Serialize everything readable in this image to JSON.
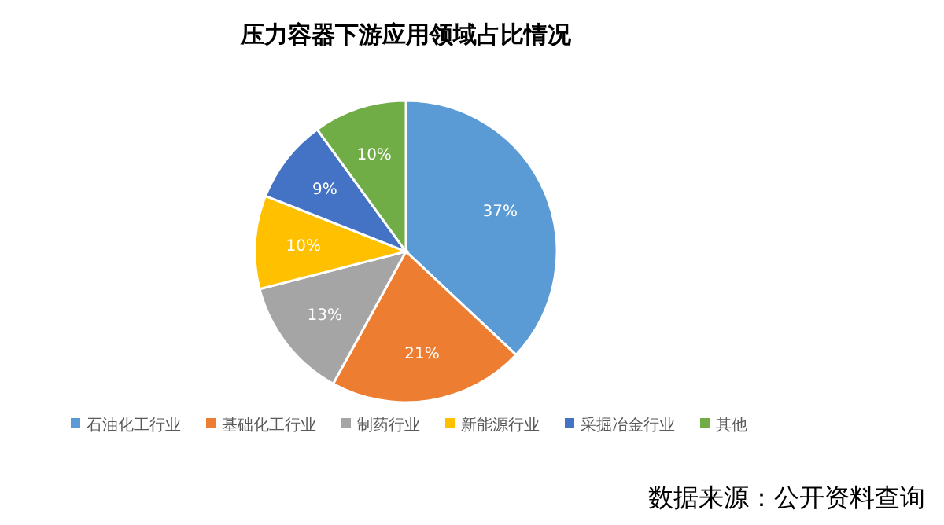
{
  "chart_data": {
    "type": "pie",
    "title": "压力容器下游应用领域占比情况",
    "categories": [
      "石油化工行业",
      "基础化工行业",
      "制药行业",
      "新能源行业",
      "采掘冶金行业",
      "其他"
    ],
    "values": [
      37,
      21,
      13,
      10,
      9,
      10
    ],
    "colors": [
      "#5b9bd5",
      "#ed7d31",
      "#a5a5a5",
      "#ffc000",
      "#4472c4",
      "#70ad47"
    ],
    "value_labels": [
      "37%",
      "21%",
      "13%",
      "10%",
      "9%",
      "10%"
    ],
    "legend": "bottom",
    "annotations": [
      "数据来源：公开资料查询"
    ]
  }
}
